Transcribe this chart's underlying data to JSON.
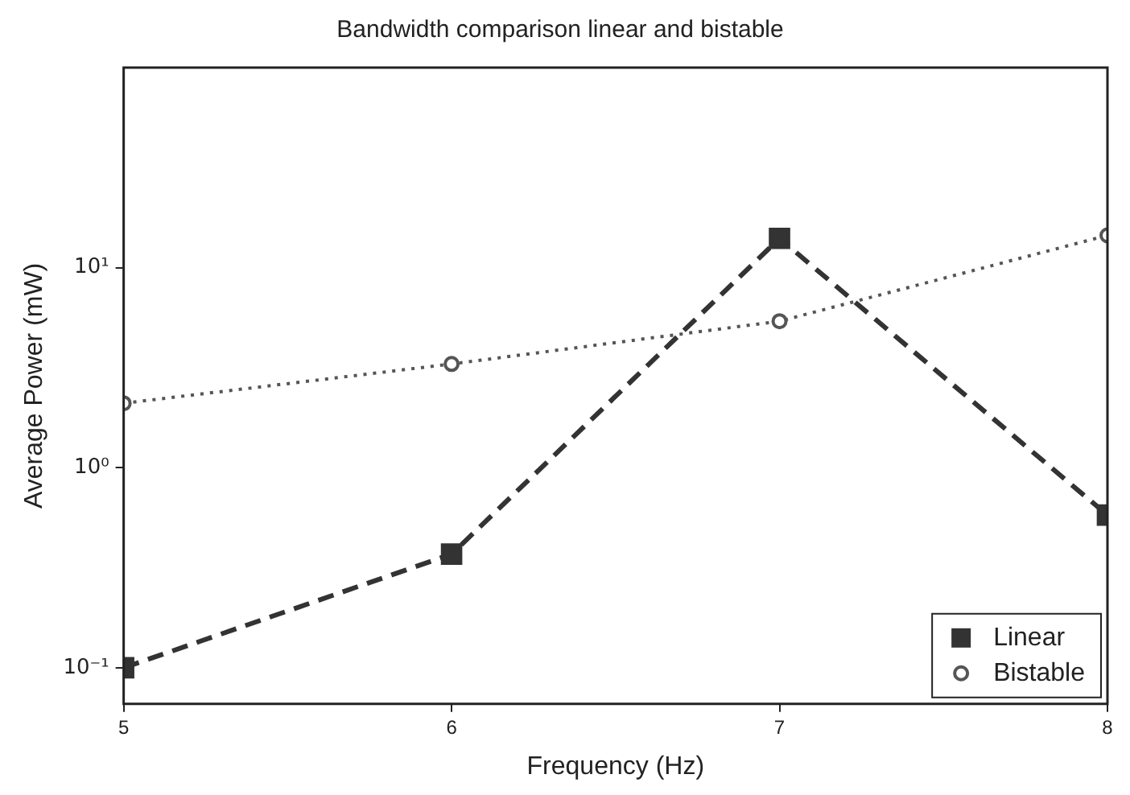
{
  "chart_data": {
    "type": "line",
    "title": "Bandwidth comparison linear and bistable",
    "xlabel": "Frequency (Hz)",
    "ylabel": "Average Power (mW)",
    "x": [
      5,
      6,
      7,
      8
    ],
    "xlim": [
      5,
      8
    ],
    "xticks": [
      5,
      6,
      7,
      8
    ],
    "log": "y",
    "ylim": [
      0.066,
      100
    ],
    "yticks": [
      {
        "value": 0.1,
        "label": "10⁻¹"
      },
      {
        "value": 1,
        "label": "10⁰"
      },
      {
        "value": 10,
        "label": "10¹"
      }
    ],
    "grid": false,
    "legend": "bottom right",
    "series": [
      {
        "name": "Linear",
        "color": "#333333",
        "values": [
          0.1,
          0.37,
          14,
          0.58
        ],
        "marker": "square",
        "line_style": "dashed"
      },
      {
        "name": "Bistable",
        "color": "#555555",
        "values": [
          2.1,
          3.3,
          5.4,
          14.5
        ],
        "marker": "circle",
        "line_style": "dotted"
      }
    ]
  }
}
